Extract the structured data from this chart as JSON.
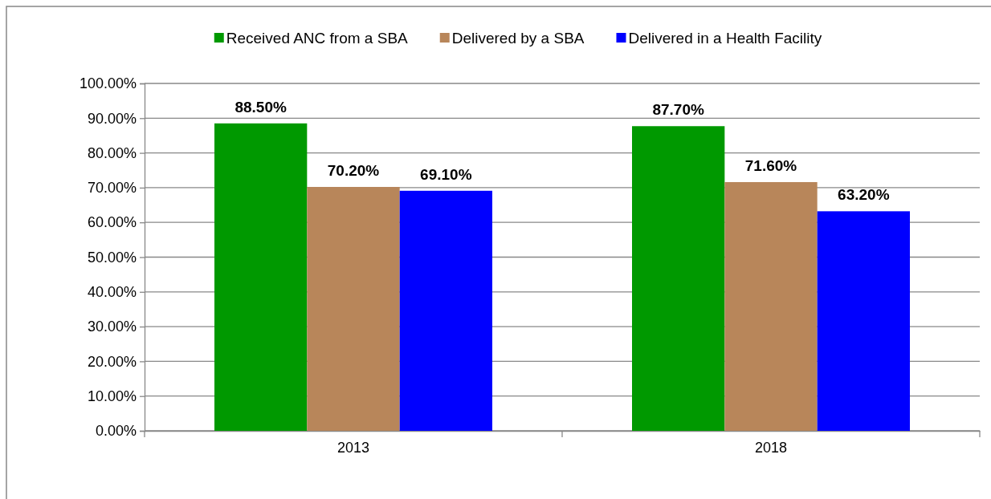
{
  "chart_data": {
    "type": "bar",
    "categories": [
      "2013",
      "2018"
    ],
    "series": [
      {
        "name": "Received ANC from a SBA",
        "color": "#009900",
        "values": [
          88.5,
          87.7
        ],
        "value_labels": [
          "88.50%",
          "87.70%"
        ]
      },
      {
        "name": "Delivered by a SBA",
        "color": "#b8865a",
        "values": [
          70.2,
          71.6
        ],
        "value_labels": [
          "70.20%",
          "71.60%"
        ]
      },
      {
        "name": "Delivered in a Health Facility",
        "color": "#0000ff",
        "values": [
          69.1,
          63.2
        ],
        "value_labels": [
          "69.10%",
          "63.20%"
        ]
      }
    ],
    "ylim": [
      0,
      100
    ],
    "yticks": [
      {
        "value": 0,
        "label": "0.00%"
      },
      {
        "value": 10,
        "label": "10.00%"
      },
      {
        "value": 20,
        "label": "20.00%"
      },
      {
        "value": 30,
        "label": "30.00%"
      },
      {
        "value": 40,
        "label": "40.00%"
      },
      {
        "value": 50,
        "label": "50.00%"
      },
      {
        "value": 60,
        "label": "60.00%"
      },
      {
        "value": 70,
        "label": "70.00%"
      },
      {
        "value": 80,
        "label": "80.00%"
      },
      {
        "value": 90,
        "label": "90.00%"
      },
      {
        "value": 100,
        "label": "100.00%"
      }
    ],
    "grid": "y",
    "legend": "top"
  }
}
